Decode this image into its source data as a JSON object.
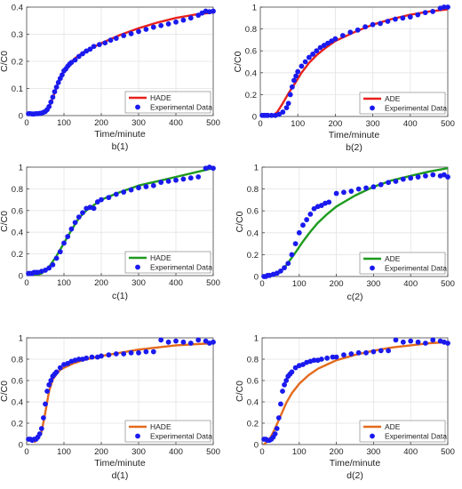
{
  "figure": {
    "colors": {
      "blue_points": "#1a1aee",
      "red": "#e8211c",
      "green": "#1e9a1e",
      "orange": "#e46a1c",
      "grid": "#e3e3e3",
      "axis": "#444444"
    }
  },
  "chart_data": [
    {
      "id": "b1",
      "type": "line+scatter",
      "caption": "b(1)",
      "xlabel": "Time/minute",
      "ylabel": "C/C0",
      "xlim": [
        0,
        500
      ],
      "ylim": [
        0,
        0.4
      ],
      "xticks": [
        0,
        100,
        200,
        300,
        400,
        500
      ],
      "yticks": [
        0,
        0.1,
        0.2,
        0.3,
        0.4
      ],
      "ytick_labels": [
        "0",
        "0.1",
        "0.2",
        "0.3",
        "0.4"
      ],
      "legend": {
        "position": "bottom-right",
        "line_label": "HADE",
        "points_label": "Experimental Data"
      },
      "model_color": "red",
      "model": {
        "x": [
          0,
          40,
          55,
          65,
          75,
          85,
          95,
          110,
          130,
          150,
          175,
          200,
          250,
          300,
          350,
          400,
          450,
          500
        ],
        "y": [
          0.008,
          0.01,
          0.02,
          0.045,
          0.085,
          0.125,
          0.155,
          0.185,
          0.212,
          0.232,
          0.25,
          0.267,
          0.297,
          0.322,
          0.343,
          0.36,
          0.372,
          0.38
        ]
      },
      "points": {
        "x": [
          5,
          10,
          15,
          20,
          25,
          30,
          35,
          40,
          45,
          50,
          55,
          60,
          65,
          70,
          75,
          80,
          85,
          90,
          95,
          100,
          105,
          110,
          115,
          120,
          130,
          140,
          150,
          160,
          170,
          180,
          195,
          210,
          225,
          240,
          260,
          280,
          300,
          320,
          340,
          360,
          380,
          400,
          420,
          440,
          460,
          470,
          480,
          490,
          500
        ],
        "y": [
          0.007,
          0.007,
          0.006,
          0.006,
          0.007,
          0.007,
          0.008,
          0.009,
          0.012,
          0.015,
          0.022,
          0.033,
          0.05,
          0.068,
          0.088,
          0.105,
          0.122,
          0.137,
          0.15,
          0.165,
          0.172,
          0.182,
          0.19,
          0.196,
          0.205,
          0.218,
          0.228,
          0.238,
          0.245,
          0.255,
          0.262,
          0.268,
          0.278,
          0.285,
          0.295,
          0.302,
          0.31,
          0.318,
          0.326,
          0.332,
          0.338,
          0.345,
          0.352,
          0.36,
          0.37,
          0.378,
          0.385,
          0.383,
          0.385
        ]
      }
    },
    {
      "id": "b2",
      "type": "line+scatter",
      "caption": "b(2)",
      "xlabel": "Time/minute",
      "ylabel": "C/C0",
      "xlim": [
        0,
        500
      ],
      "ylim": [
        0,
        1
      ],
      "xticks": [
        0,
        100,
        200,
        300,
        400,
        500
      ],
      "yticks": [
        0,
        0.2,
        0.4,
        0.6,
        0.8,
        1
      ],
      "ytick_labels": [
        "0",
        "0.2",
        "0.4",
        "0.6",
        "0.8",
        "1"
      ],
      "legend": {
        "position": "bottom-right",
        "line_label": "ADE",
        "points_label": "Experimental Data"
      },
      "model_color": "red",
      "model": {
        "x": [
          30,
          45,
          60,
          75,
          90,
          110,
          130,
          150,
          175,
          200,
          250,
          300,
          350,
          400,
          450,
          500
        ],
        "y": [
          0.0,
          0.04,
          0.12,
          0.21,
          0.29,
          0.4,
          0.49,
          0.56,
          0.63,
          0.69,
          0.77,
          0.84,
          0.89,
          0.93,
          0.96,
          0.98
        ]
      },
      "points": {
        "x": [
          5,
          10,
          15,
          20,
          30,
          40,
          50,
          60,
          70,
          75,
          80,
          85,
          90,
          95,
          100,
          110,
          120,
          130,
          140,
          150,
          160,
          170,
          180,
          190,
          200,
          220,
          240,
          260,
          280,
          300,
          320,
          340,
          360,
          380,
          400,
          420,
          440,
          460,
          480,
          490,
          500
        ],
        "y": [
          0.01,
          0.01,
          0.01,
          0.01,
          0.01,
          0.01,
          0.02,
          0.04,
          0.08,
          0.12,
          0.2,
          0.27,
          0.33,
          0.37,
          0.41,
          0.46,
          0.5,
          0.54,
          0.57,
          0.6,
          0.63,
          0.65,
          0.67,
          0.69,
          0.71,
          0.74,
          0.77,
          0.79,
          0.82,
          0.84,
          0.85,
          0.87,
          0.89,
          0.9,
          0.91,
          0.93,
          0.95,
          0.96,
          0.99,
          1.0,
          1.0
        ]
      }
    },
    {
      "id": "c1",
      "type": "line+scatter",
      "caption": "c(1)",
      "xlabel": "",
      "ylabel": "C/C0",
      "xlim": [
        0,
        500
      ],
      "ylim": [
        0,
        1
      ],
      "xticks": [
        0,
        100,
        200,
        300,
        400,
        500
      ],
      "yticks": [
        0,
        0.2,
        0.4,
        0.6,
        0.8,
        1
      ],
      "ytick_labels": [
        "0",
        "0.2",
        "0.4",
        "0.6",
        "0.8",
        "1"
      ],
      "legend": {
        "position": "bottom-right",
        "line_label": "HADE",
        "points_label": "Experimental Data"
      },
      "model_color": "green",
      "model": {
        "x": [
          20,
          40,
          60,
          80,
          100,
          120,
          140,
          160,
          180,
          200,
          250,
          300,
          350,
          400,
          450,
          500
        ],
        "y": [
          0.0,
          0.02,
          0.08,
          0.18,
          0.3,
          0.42,
          0.53,
          0.6,
          0.65,
          0.7,
          0.77,
          0.83,
          0.87,
          0.91,
          0.95,
          0.99
        ]
      },
      "points": {
        "x": [
          5,
          10,
          15,
          20,
          25,
          30,
          40,
          50,
          60,
          70,
          80,
          90,
          100,
          110,
          120,
          130,
          140,
          150,
          160,
          170,
          180,
          190,
          200,
          220,
          240,
          260,
          280,
          300,
          320,
          340,
          360,
          380,
          400,
          420,
          440,
          460,
          480,
          490,
          500
        ],
        "y": [
          0.02,
          0.02,
          0.02,
          0.03,
          0.03,
          0.03,
          0.04,
          0.05,
          0.07,
          0.1,
          0.16,
          0.22,
          0.3,
          0.36,
          0.43,
          0.49,
          0.54,
          0.58,
          0.62,
          0.63,
          0.62,
          0.68,
          0.7,
          0.72,
          0.75,
          0.77,
          0.79,
          0.81,
          0.82,
          0.83,
          0.86,
          0.87,
          0.88,
          0.89,
          0.9,
          0.91,
          0.99,
          1.0,
          0.99
        ]
      }
    },
    {
      "id": "c2",
      "type": "line+scatter",
      "caption": "c(2)",
      "xlabel": "",
      "ylabel": "C/C0",
      "xlim": [
        0,
        500
      ],
      "ylim": [
        0,
        1
      ],
      "xticks": [
        0,
        100,
        200,
        300,
        400,
        500
      ],
      "yticks": [
        0,
        0.2,
        0.4,
        0.6,
        0.8,
        1
      ],
      "ytick_labels": [
        "0",
        "0.2",
        "0.4",
        "0.6",
        "0.8",
        "1"
      ],
      "legend": {
        "position": "bottom-right",
        "line_label": "ADE",
        "points_label": "Experimental Data"
      },
      "model_color": "green",
      "model": {
        "x": [
          25,
          45,
          60,
          75,
          90,
          110,
          130,
          150,
          175,
          200,
          250,
          300,
          350,
          400,
          450,
          500
        ],
        "y": [
          0.0,
          0.03,
          0.08,
          0.15,
          0.22,
          0.32,
          0.41,
          0.49,
          0.57,
          0.64,
          0.74,
          0.82,
          0.88,
          0.92,
          0.96,
          0.99
        ]
      },
      "points": {
        "x": [
          5,
          10,
          15,
          20,
          30,
          40,
          50,
          60,
          70,
          80,
          90,
          100,
          110,
          120,
          130,
          140,
          150,
          160,
          170,
          180,
          200,
          220,
          240,
          260,
          280,
          300,
          320,
          340,
          360,
          380,
          400,
          420,
          440,
          460,
          480,
          490,
          500
        ],
        "y": [
          0.0,
          0.0,
          0.01,
          0.01,
          0.02,
          0.03,
          0.05,
          0.08,
          0.12,
          0.2,
          0.3,
          0.4,
          0.47,
          0.52,
          0.57,
          0.62,
          0.64,
          0.65,
          0.67,
          0.68,
          0.76,
          0.77,
          0.78,
          0.8,
          0.81,
          0.82,
          0.84,
          0.86,
          0.87,
          0.89,
          0.9,
          0.91,
          0.92,
          0.93,
          0.92,
          0.93,
          0.91
        ]
      }
    },
    {
      "id": "d1",
      "type": "line+scatter",
      "caption": "d(1)",
      "xlabel": "Time/minute",
      "ylabel": "C/C0",
      "xlim": [
        0,
        500
      ],
      "ylim": [
        0,
        1
      ],
      "xticks": [
        0,
        100,
        200,
        300,
        400,
        500
      ],
      "yticks": [
        0,
        0.2,
        0.4,
        0.6,
        0.8,
        1
      ],
      "ytick_labels": [
        "0",
        "0.2",
        "0.4",
        "0.6",
        "0.8",
        "1"
      ],
      "legend": {
        "position": "bottom-right",
        "line_label": "HADE",
        "points_label": "Experimental Data"
      },
      "model_color": "orange",
      "model": {
        "x": [
          20,
          30,
          40,
          50,
          60,
          70,
          80,
          90,
          100,
          125,
          150,
          200,
          250,
          300,
          350,
          400,
          450,
          500
        ],
        "y": [
          0.02,
          0.05,
          0.12,
          0.3,
          0.5,
          0.61,
          0.66,
          0.7,
          0.72,
          0.76,
          0.79,
          0.83,
          0.86,
          0.89,
          0.91,
          0.93,
          0.94,
          0.95
        ]
      },
      "points": {
        "x": [
          5,
          10,
          15,
          20,
          25,
          30,
          35,
          40,
          45,
          50,
          55,
          60,
          65,
          70,
          75,
          80,
          90,
          100,
          110,
          120,
          130,
          140,
          150,
          160,
          175,
          190,
          200,
          220,
          240,
          260,
          280,
          300,
          320,
          340,
          360,
          380,
          400,
          420,
          440,
          460,
          480,
          490,
          500
        ],
        "y": [
          0.05,
          0.05,
          0.04,
          0.05,
          0.05,
          0.07,
          0.1,
          0.15,
          0.25,
          0.38,
          0.5,
          0.56,
          0.6,
          0.64,
          0.66,
          0.68,
          0.72,
          0.75,
          0.76,
          0.78,
          0.79,
          0.8,
          0.8,
          0.81,
          0.82,
          0.82,
          0.83,
          0.84,
          0.85,
          0.85,
          0.86,
          0.86,
          0.87,
          0.87,
          0.98,
          0.96,
          0.97,
          0.96,
          0.95,
          0.98,
          0.97,
          0.95,
          0.96
        ]
      }
    },
    {
      "id": "d2",
      "type": "line+scatter",
      "caption": "d(2)",
      "xlabel": "Time/minute",
      "ylabel": "C/C0",
      "xlim": [
        0,
        500
      ],
      "ylim": [
        0,
        1
      ],
      "xticks": [
        0,
        100,
        200,
        300,
        400,
        500
      ],
      "yticks": [
        0,
        0.2,
        0.4,
        0.6,
        0.8,
        1
      ],
      "ytick_labels": [
        "0",
        "0.2",
        "0.4",
        "0.6",
        "0.8",
        "1"
      ],
      "legend": {
        "position": "bottom-right",
        "line_label": "ADE",
        "points_label": "Experimental Data"
      },
      "model_color": "orange",
      "model": {
        "x": [
          5,
          20,
          35,
          50,
          65,
          80,
          100,
          125,
          150,
          175,
          200,
          250,
          300,
          350,
          400,
          450,
          500
        ],
        "y": [
          0.0,
          0.05,
          0.15,
          0.27,
          0.39,
          0.48,
          0.57,
          0.65,
          0.71,
          0.75,
          0.79,
          0.84,
          0.88,
          0.91,
          0.93,
          0.95,
          0.96
        ]
      },
      "points": {
        "x": [
          5,
          10,
          15,
          20,
          25,
          30,
          35,
          40,
          45,
          50,
          55,
          60,
          65,
          70,
          75,
          80,
          90,
          100,
          110,
          120,
          130,
          140,
          150,
          160,
          175,
          190,
          200,
          220,
          240,
          260,
          280,
          300,
          320,
          340,
          360,
          380,
          400,
          420,
          440,
          460,
          480,
          490,
          500
        ],
        "y": [
          0.05,
          0.05,
          0.04,
          0.04,
          0.05,
          0.07,
          0.1,
          0.15,
          0.25,
          0.38,
          0.5,
          0.56,
          0.6,
          0.64,
          0.66,
          0.68,
          0.72,
          0.74,
          0.75,
          0.77,
          0.78,
          0.79,
          0.79,
          0.8,
          0.81,
          0.82,
          0.82,
          0.84,
          0.85,
          0.86,
          0.86,
          0.87,
          0.88,
          0.88,
          0.98,
          0.96,
          0.97,
          0.96,
          0.95,
          0.98,
          0.97,
          0.96,
          0.95
        ]
      }
    }
  ]
}
